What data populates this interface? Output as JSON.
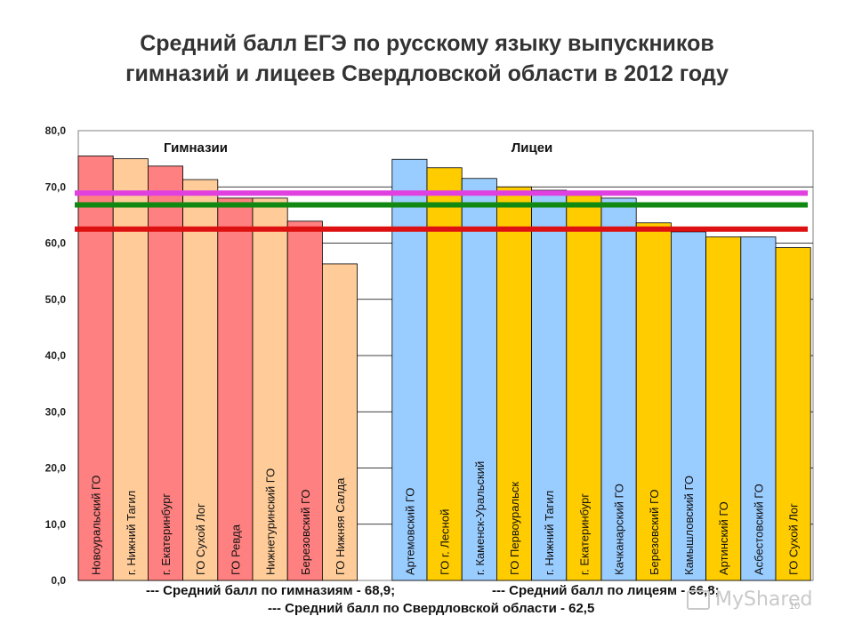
{
  "title": {
    "line1": "Средний балл  ЕГЭ по русскому языку выпускников",
    "line2": "гимназий и лицеев  Свердловской области  в 2012 году"
  },
  "chart_data": {
    "type": "bar",
    "ylim": [
      0,
      80
    ],
    "yticks": [
      "0,0",
      "10,0",
      "20,0",
      "30,0",
      "40,0",
      "50,0",
      "60,0",
      "70,0",
      "80,0"
    ],
    "groups": [
      {
        "label": "Гимназии",
        "categories": [
          {
            "name": "Новоуральский ГО",
            "value": 75.5,
            "color": "#ff8080"
          },
          {
            "name": "г. Нижний Тагил",
            "value": 75.0,
            "color": "#ffcc99"
          },
          {
            "name": "г. Екатеринбург",
            "value": 73.7,
            "color": "#ff8080"
          },
          {
            "name": "ГО Сухой Лог",
            "value": 71.3,
            "color": "#ffcc99"
          },
          {
            "name": "ГО Ревда",
            "value": 68.0,
            "color": "#ff8080"
          },
          {
            "name": "Нижнетуринский ГО",
            "value": 68.0,
            "color": "#ffcc99"
          },
          {
            "name": "Березовский ГО",
            "value": 63.9,
            "color": "#ff8080"
          },
          {
            "name": "ГО Нижняя Салда",
            "value": 56.3,
            "color": "#ffcc99"
          }
        ]
      },
      {
        "label": "Лицеи",
        "categories": [
          {
            "name": "Артемовский ГО",
            "value": 74.9,
            "color": "#99ccff"
          },
          {
            "name": "ГО г. Лесной",
            "value": 73.4,
            "color": "#ffcc00"
          },
          {
            "name": "г. Каменск-Уральский",
            "value": 71.5,
            "color": "#99ccff"
          },
          {
            "name": "ГО Первоуральск",
            "value": 70.0,
            "color": "#ffcc00"
          },
          {
            "name": "г. Нижний Тагил",
            "value": 69.4,
            "color": "#99ccff"
          },
          {
            "name": "г. Екатеринбург",
            "value": 68.5,
            "color": "#ffcc00"
          },
          {
            "name": "Качканарский ГО",
            "value": 68.0,
            "color": "#99ccff"
          },
          {
            "name": "Березовский ГО",
            "value": 63.6,
            "color": "#ffcc00"
          },
          {
            "name": "Камышловский ГО",
            "value": 62.0,
            "color": "#99ccff"
          },
          {
            "name": "Артинский ГО",
            "value": 61.1,
            "color": "#ffcc00"
          },
          {
            "name": "Асбестовский ГО",
            "value": 61.1,
            "color": "#99ccff"
          },
          {
            "name": "ГО Сухой Лог",
            "value": 59.2,
            "color": "#ffcc00"
          }
        ]
      }
    ],
    "reference_lines": [
      {
        "value": 68.9,
        "color": "#e040e0"
      },
      {
        "value": 66.8,
        "color": "#118811"
      },
      {
        "value": 62.5,
        "color": "#dd1111"
      }
    ],
    "grid": true
  },
  "footer": {
    "gym_avg": "--- Средний балл по гимназиям - 68,9;",
    "lyc_avg": "--- Средний балл по лицеям - 66,8;",
    "region_avg": "--- Средний балл по Свердловской области - 62,5"
  },
  "watermark": "MyShared",
  "page_number": "10"
}
